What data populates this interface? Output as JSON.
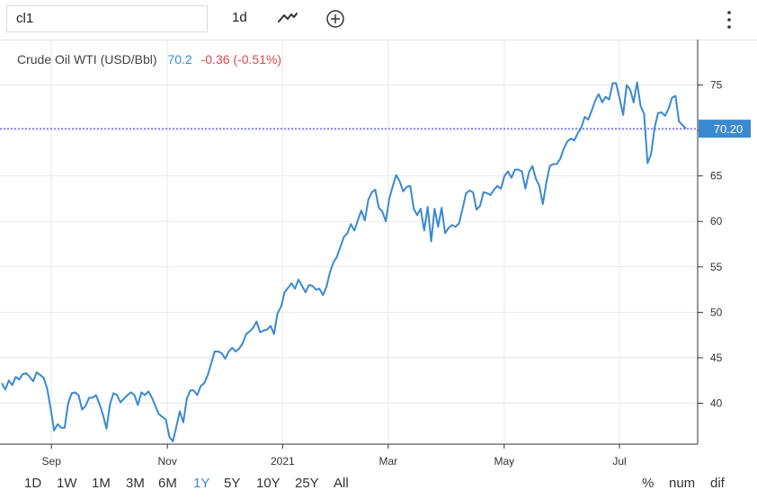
{
  "toolbar": {
    "symbol_value": "cl1",
    "interval_label": "1d",
    "chart_type_icon": "line-chart-icon",
    "add_icon": "plus-circle-icon",
    "more_icon": "vertical-ellipsis-icon"
  },
  "legend": {
    "name": "Crude Oil WTI (USD/Bbl)",
    "last": "70.2",
    "change": "-0.36 (-0.51%)"
  },
  "price_label": "70.20",
  "range_buttons": [
    "1D",
    "1W",
    "1M",
    "3M",
    "6M",
    "1Y",
    "5Y",
    "10Y",
    "25Y",
    "All"
  ],
  "active_range": "1Y",
  "options": [
    "%",
    "num",
    "dif"
  ],
  "colors": {
    "line": "#3a8ad0",
    "price_line": "#1a1aff",
    "price_badge": "#3a8ad0",
    "negative": "#e0474c",
    "grid": "#e9e9e9"
  },
  "chart_data": {
    "type": "line",
    "title": "Crude Oil WTI (USD/Bbl)",
    "x_tick_labels": [
      "Sep",
      "Nov",
      "2021",
      "Mar",
      "May",
      "Jul"
    ],
    "y_ticks": [
      40,
      45,
      50,
      55,
      60,
      65,
      70,
      75
    ],
    "ylim": [
      35.5,
      80
    ],
    "grid": true,
    "last_value": 70.2,
    "series": [
      {
        "name": "Crude Oil WTI (USD/Bbl)",
        "values": [
          42.2,
          41.5,
          42.5,
          42.0,
          42.9,
          42.6,
          43.2,
          43.3,
          42.9,
          42.4,
          43.4,
          43.1,
          42.8,
          41.6,
          39.4,
          37.0,
          37.7,
          37.3,
          37.3,
          40.0,
          41.1,
          41.2,
          40.9,
          39.3,
          39.7,
          40.6,
          40.6,
          40.9,
          39.9,
          38.7,
          37.2,
          39.9,
          41.1,
          40.9,
          40.1,
          40.5,
          40.9,
          41.2,
          40.9,
          39.8,
          41.2,
          40.9,
          41.3,
          40.6,
          39.7,
          38.8,
          38.5,
          38.2,
          36.3,
          35.8,
          37.4,
          39.1,
          37.9,
          40.5,
          41.4,
          41.4,
          40.9,
          41.9,
          42.2,
          43.1,
          44.4,
          45.7,
          45.7,
          45.5,
          44.9,
          45.7,
          46.1,
          45.7,
          46.0,
          46.6,
          47.6,
          47.9,
          48.3,
          49.0,
          47.8,
          48.0,
          48.1,
          48.5,
          47.6,
          49.9,
          50.6,
          52.2,
          52.7,
          53.2,
          52.6,
          53.6,
          52.9,
          52.2,
          53.0,
          52.9,
          52.5,
          52.6,
          51.9,
          52.8,
          54.4,
          55.5,
          56.1,
          57.2,
          58.3,
          58.7,
          59.7,
          59.0,
          60.1,
          61.2,
          60.1,
          62.4,
          63.2,
          63.5,
          61.5,
          61.1,
          60.0,
          62.5,
          63.9,
          65.1,
          64.4,
          63.3,
          63.8,
          63.9,
          61.4,
          60.7,
          61.4,
          59.0,
          61.6,
          57.8,
          61.4,
          59.4,
          61.5,
          58.7,
          59.3,
          59.6,
          59.4,
          59.8,
          61.4,
          63.1,
          63.4,
          63.2,
          61.3,
          61.7,
          63.2,
          63.1,
          62.9,
          63.5,
          63.9,
          63.6,
          65.0,
          65.5,
          64.8,
          65.7,
          65.7,
          65.5,
          63.6,
          65.4,
          66.1,
          64.7,
          63.9,
          61.9,
          64.3,
          66.1,
          66.3,
          66.3,
          66.9,
          68.0,
          68.8,
          69.1,
          68.9,
          69.7,
          70.3,
          71.5,
          71.2,
          72.2,
          73.3,
          74.0,
          73.1,
          73.7,
          73.4,
          75.2,
          75.2,
          73.5,
          71.7,
          75.0,
          74.5,
          73.1,
          75.3,
          72.7,
          71.8,
          66.4,
          67.4,
          70.3,
          71.9,
          72.0,
          71.6,
          72.4,
          73.6,
          73.8,
          71.0,
          70.6,
          70.2
        ]
      }
    ]
  }
}
